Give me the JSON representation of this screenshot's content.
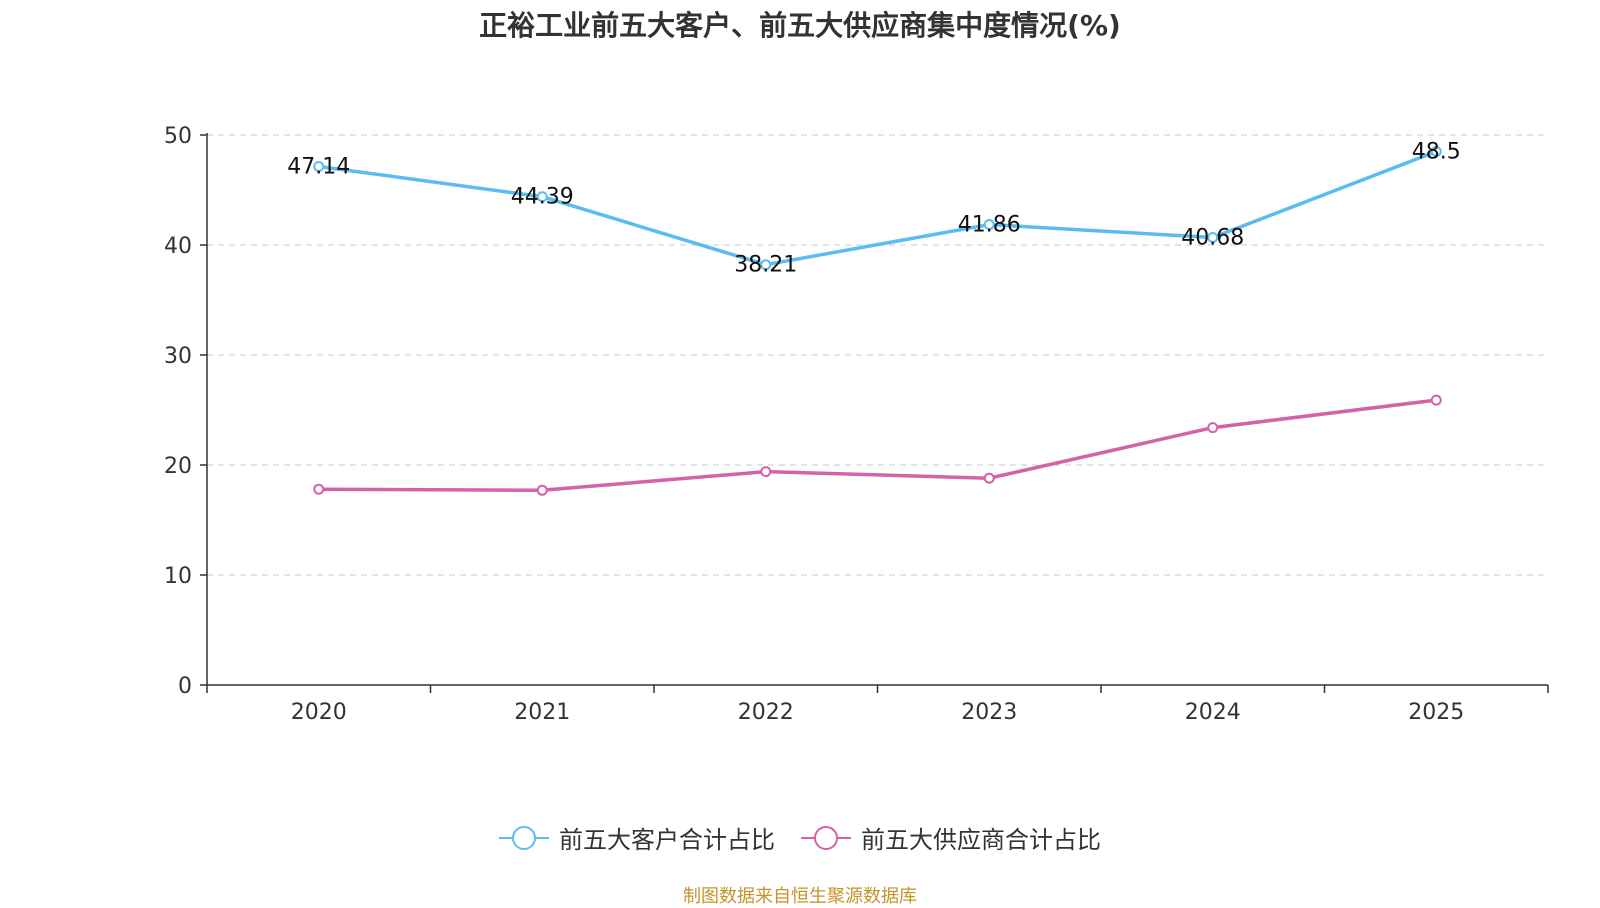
{
  "chart_data": {
    "type": "line",
    "title": "正裕工业前五大客户、前五大供应商集中度情况(%)",
    "categories": [
      "2020",
      "2021",
      "2022",
      "2023",
      "2024",
      "2025"
    ],
    "ylim": [
      0,
      50
    ],
    "yticks": [
      0,
      10,
      20,
      30,
      40,
      50
    ],
    "grid": true,
    "legend_position": "bottom-center",
    "series": [
      {
        "name": "前五大客户合计占比",
        "color": "#5bbcf0",
        "values": [
          47.14,
          44.39,
          38.21,
          41.86,
          40.68,
          48.5
        ],
        "labels": [
          "47.14",
          "44.39",
          "38.21",
          "41.86",
          "40.68",
          "48.5"
        ],
        "show_labels": true
      },
      {
        "name": "前五大供应商合计占比",
        "color": "#d462a8",
        "values": [
          17.8,
          17.7,
          19.4,
          18.8,
          23.4,
          25.9
        ],
        "show_labels": false
      }
    ],
    "source": "制图数据来自恒生聚源数据库"
  }
}
